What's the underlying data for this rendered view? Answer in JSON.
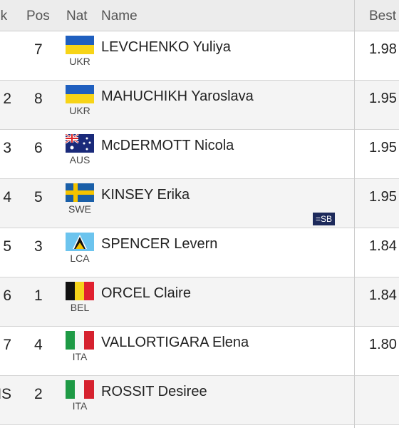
{
  "header": {
    "rank": "nk",
    "pos": "Pos",
    "nat": "Nat",
    "name": "Name",
    "best": "Best"
  },
  "rows": [
    {
      "rank": "",
      "pos": "7",
      "nat": "UKR",
      "name": "LEVCHENKO Yuliya",
      "best": "1.98"
    },
    {
      "rank": "2",
      "pos": "8",
      "nat": "UKR",
      "name": "MAHUCHIKH Yaroslava",
      "best": "1.95"
    },
    {
      "rank": "3",
      "pos": "6",
      "nat": "AUS",
      "name": "McDERMOTT Nicola",
      "best": "1.95"
    },
    {
      "rank": "4",
      "pos": "5",
      "nat": "SWE",
      "name": "KINSEY Erika",
      "best": "1.95",
      "note": "=SB"
    },
    {
      "rank": "5",
      "pos": "3",
      "nat": "LCA",
      "name": "SPENCER Levern",
      "best": "1.84"
    },
    {
      "rank": "6",
      "pos": "1",
      "nat": "BEL",
      "name": "ORCEL Claire",
      "best": "1.84"
    },
    {
      "rank": "7",
      "pos": "4",
      "nat": "ITA",
      "name": "VALLORTIGARA Elena",
      "best": "1.80"
    },
    {
      "rank": "NS",
      "pos": "2",
      "nat": "ITA",
      "name": "ROSSIT Desiree",
      "best": ""
    }
  ]
}
